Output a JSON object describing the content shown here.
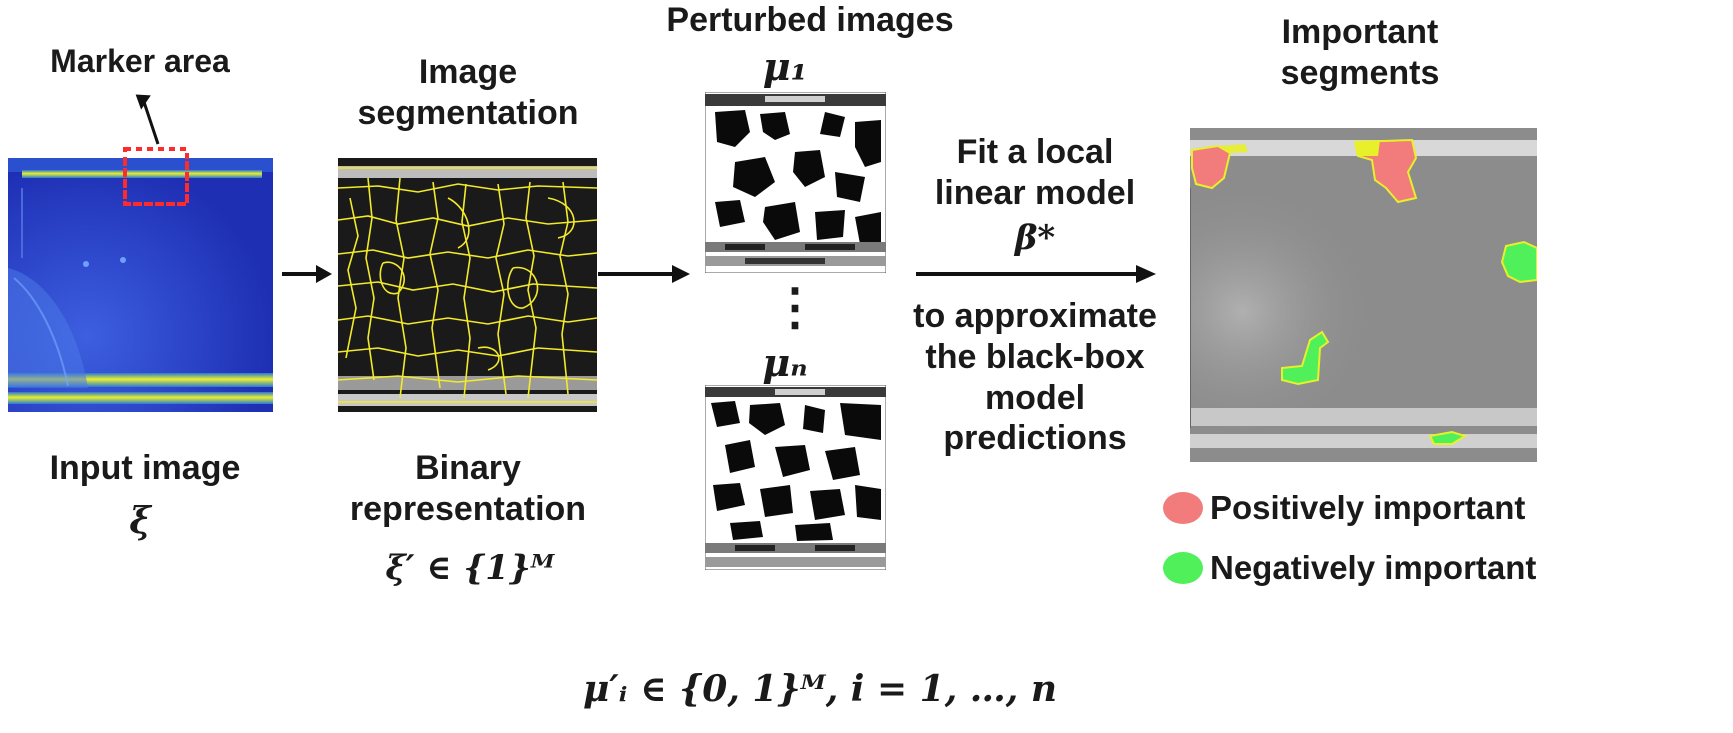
{
  "marker_label": "Marker area",
  "input_label": "Input image",
  "input_symbol": "ξ",
  "segmentation_title": "Image segmentation",
  "binary_label": "Binary representation",
  "binary_formula": "ξ′ ∈ {1}ᴹ",
  "perturbed_title": "Perturbed images",
  "mu1_label": "μ₁",
  "mun_label": "μₙ",
  "ellipsis": "⋮",
  "perturb_formula": "μ′ᵢ ∈ {0, 1}ᴹ, i = 1, …, n",
  "fit_text": [
    "Fit a local",
    "linear model"
  ],
  "beta_label": "β*",
  "approx_text": [
    "to approximate",
    "the black-box",
    "model",
    "predictions"
  ],
  "important_title": [
    "Important",
    "segments"
  ],
  "legend": [
    {
      "label": "Positively important",
      "color": "#f27b7b"
    },
    {
      "label": "Negatively important",
      "color": "#4ff05a"
    }
  ],
  "colors": {
    "marker_box": "#ff2a2a",
    "segment_lines": "#f2ea2a",
    "input_bg": "#1e2fb4"
  }
}
